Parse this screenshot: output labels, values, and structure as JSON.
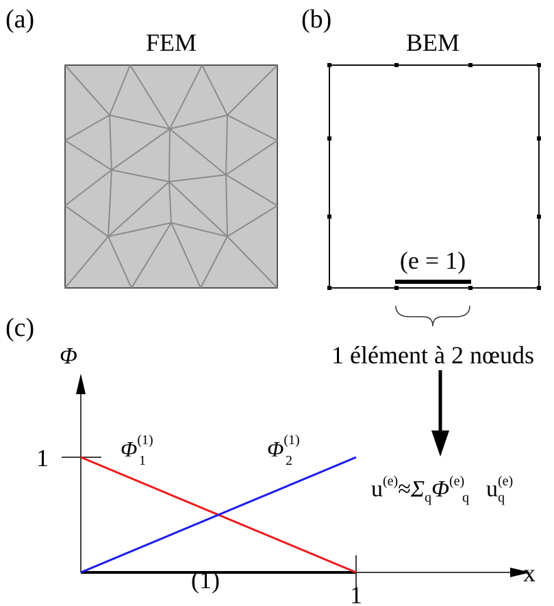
{
  "panels": {
    "a": {
      "label": "(a)",
      "title": "FEM"
    },
    "b": {
      "label": "(b)",
      "title": "BEM",
      "element_label": "(e = 1)",
      "brace_caption": "1 élément à 2 nœuds"
    },
    "c": {
      "label": "(c)",
      "y_axis_symbol": "Φ",
      "x_axis_symbol": "x",
      "y_tick": "1",
      "x_tick": "1",
      "element_label": "(1)",
      "phi1": {
        "symbol": "Φ",
        "sub": "1",
        "sup": "(1)"
      },
      "phi2": {
        "symbol": "Φ",
        "sub": "2",
        "sup": "(1)"
      }
    }
  },
  "formula": {
    "u": "u",
    "u_sup": "(e)",
    "approx": "≈",
    "sigma": "Σ",
    "sigma_sub": "q",
    "phi": "Φ",
    "phi_sub": "q",
    "phi_sup": "(e)",
    "u2": "u",
    "u2_sub": "q",
    "u2_sup": "(e)"
  },
  "colors": {
    "mesh_fill": "#c8c8c8",
    "mesh_edge": "#8c8c8c",
    "phi1_line": "#ee1c1c",
    "phi2_line": "#1c1cee",
    "ink": "#000000"
  }
}
